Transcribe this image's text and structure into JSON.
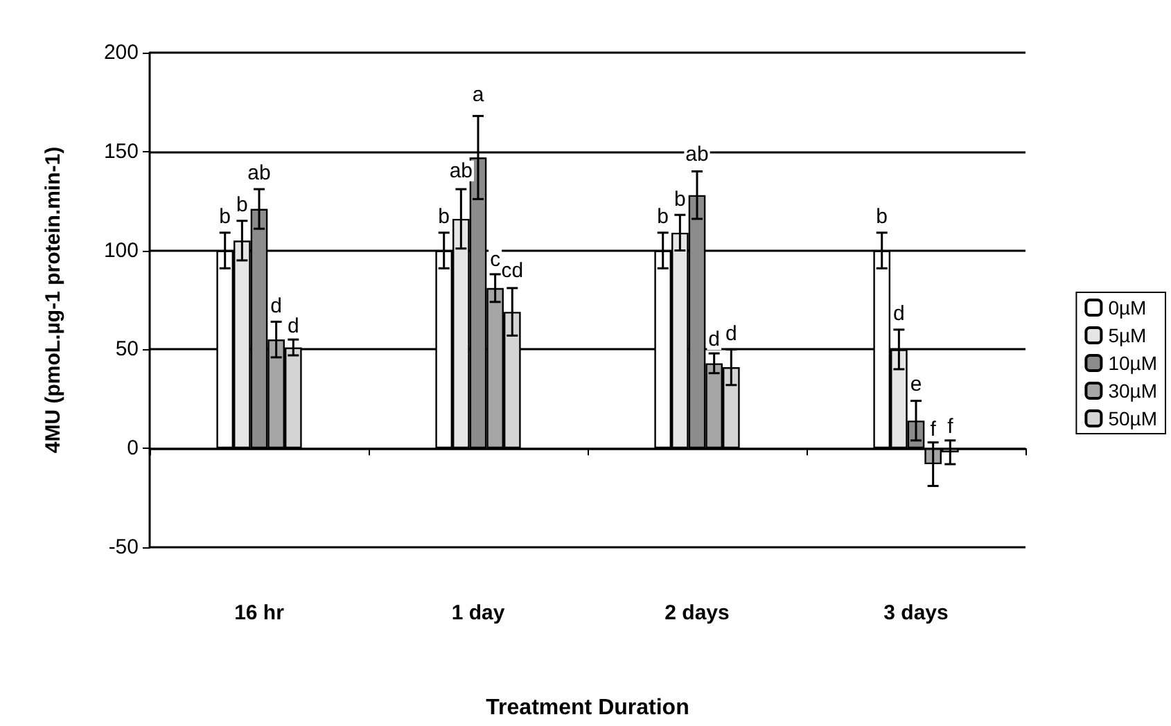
{
  "chart_data": {
    "type": "bar",
    "xlabel": "Treatment Duration",
    "ylabel": "4MU (pmoL.µg-1 protein.min-1)",
    "categories": [
      "16 hr",
      "1 day",
      "2 days",
      "3 days"
    ],
    "series": [
      {
        "name": "0µM",
        "color": "#ffffff",
        "values": [
          100,
          100,
          100,
          100
        ],
        "errors": [
          9,
          9,
          9,
          9
        ],
        "value_labels": [
          "b",
          "b",
          "b",
          "b"
        ]
      },
      {
        "name": "5µM",
        "color": "#e6e6e6",
        "values": [
          105,
          116,
          109,
          50
        ],
        "errors": [
          10,
          15,
          9,
          10
        ],
        "value_labels": [
          "b",
          "ab",
          "b",
          "d"
        ]
      },
      {
        "name": "10µM",
        "color": "#8c8c8c",
        "values": [
          121,
          147,
          128,
          14
        ],
        "errors": [
          10,
          21,
          12,
          10
        ],
        "value_labels": [
          "ab",
          "a",
          "ab",
          "e"
        ]
      },
      {
        "name": "30µM",
        "color": "#a6a6a6",
        "values": [
          55,
          81,
          43,
          -8
        ],
        "errors": [
          9,
          7,
          5,
          11
        ],
        "value_labels": [
          "d",
          "c",
          "d",
          "f"
        ]
      },
      {
        "name": "50µM",
        "color": "#d4d4d4",
        "values": [
          51,
          69,
          41,
          -2
        ],
        "errors": [
          4,
          12,
          9,
          6
        ],
        "value_labels": [
          "d",
          "cd",
          "d",
          "f"
        ]
      }
    ],
    "ylim": [
      -50,
      200
    ],
    "yticks": [
      -50,
      0,
      50,
      100,
      150,
      200
    ],
    "grid": "y",
    "legend": "right"
  }
}
